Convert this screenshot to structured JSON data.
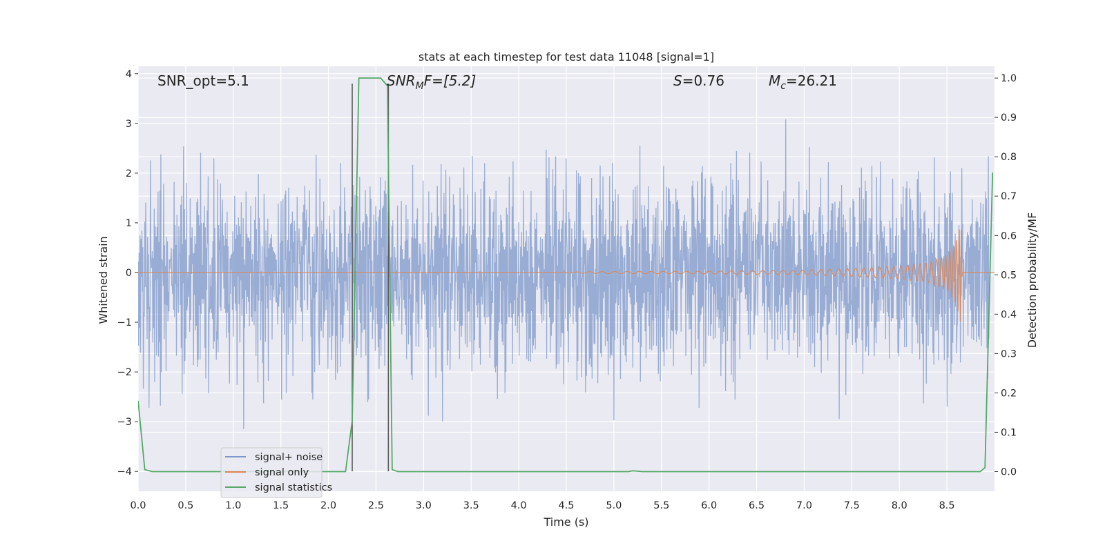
{
  "colors": {
    "axes_bg": "#EAEAF2",
    "grid": "#FFFFFF",
    "noise": "#7E98C9",
    "signal": "#DD8452",
    "statistic": "#55A868",
    "marker": "#5A5A5A",
    "text": "#262626"
  },
  "chart_data": {
    "type": "line",
    "title": "stats at each timestep for test data 11048 [signal=1]",
    "xlabel": "Time (s)",
    "ylabel_left": "Whitened strain",
    "ylabel_right": "Detection probability/MF",
    "xlim": [
      0.0,
      9.0
    ],
    "ylim_left": [
      -4.4,
      4.15
    ],
    "ylim_right": [
      -0.05,
      1.03
    ],
    "grid": true,
    "x_ticks": [
      "0.0",
      "0.5",
      "1.0",
      "1.5",
      "2.0",
      "2.5",
      "3.0",
      "3.5",
      "4.0",
      "4.5",
      "5.0",
      "5.5",
      "6.0",
      "6.5",
      "7.0",
      "7.5",
      "8.0",
      "8.5"
    ],
    "y_left_ticks": [
      "−4",
      "−3",
      "−2",
      "−1",
      "0",
      "1",
      "2",
      "3",
      "4"
    ],
    "y_right_ticks": [
      "0.0",
      "0.1",
      "0.2",
      "0.3",
      "0.4",
      "0.5",
      "0.6",
      "0.7",
      "0.8",
      "0.9",
      "1.0"
    ],
    "annotations": {
      "snr_opt": "SNR_opt=5.1",
      "snr_mf_main": "SNR",
      "snr_mf_sub": "M",
      "snr_mf_rest": "F=[5.2]",
      "s_main": "S",
      "s_rest": "=0.76",
      "mc_main": "M",
      "mc_sub": "c",
      "mc_rest": "=26.21"
    },
    "legend": {
      "placement": "lower-left",
      "entries": [
        "signal+ noise",
        "signal only",
        "signal statistics"
      ]
    },
    "series": [
      {
        "name": "signal+ noise",
        "kind": "noise",
        "x_range": [
          0.0,
          8.95
        ],
        "typical_amplitude": 1.5,
        "max_amplitude": 3.8,
        "n_samples": 1800
      },
      {
        "name": "signal only",
        "kind": "chirp",
        "x": [
          0.0,
          4.0,
          5.0,
          6.0,
          7.0,
          7.5,
          8.0,
          8.3,
          8.5,
          8.6,
          8.65,
          8.66,
          9.0
        ],
        "envelope": [
          0.0,
          0.0,
          0.02,
          0.03,
          0.05,
          0.08,
          0.13,
          0.2,
          0.35,
          0.65,
          1.1,
          0.0,
          0.0
        ]
      },
      {
        "name": "signal statistics",
        "x": [
          0.0,
          0.07,
          0.15,
          2.18,
          2.25,
          2.32,
          2.55,
          2.62,
          2.67,
          2.73,
          5.15,
          5.2,
          5.3,
          8.85,
          8.9,
          8.98
        ],
        "y": [
          0.18,
          0.005,
          0.0,
          0.0,
          0.13,
          1.0,
          1.0,
          0.98,
          0.005,
          0.0,
          0.0,
          0.002,
          0.0,
          0.0,
          0.01,
          0.76
        ]
      }
    ],
    "markers": {
      "x": [
        2.25,
        2.63
      ],
      "y_range": [
        -4.0,
        3.8
      ]
    }
  }
}
